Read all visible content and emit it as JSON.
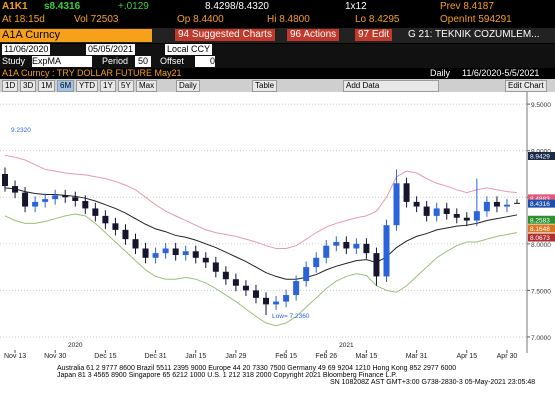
{
  "quote": {
    "ticker": "A1K1",
    "last": "s8.4316",
    "change": "+.0129",
    "bid_ask": "8.4298/8.4320",
    "size": "1x12",
    "prev": "Prev 8.4187",
    "time": "At 18:15d",
    "vol": "Vol 72503",
    "open": "Op 8.4400",
    "high": "Hi 8.4800",
    "low": "Lo 8.4295",
    "open_interest": "OpenInt 594291"
  },
  "menu": {
    "security": "A1A Curncy",
    "items": [
      "94 Suggested Charts",
      "96 Actions",
      "97 Edit",
      "G 21: TEKNIK COZUMLEM..."
    ]
  },
  "range": {
    "start": "11/06/2020",
    "end": "05/05/2021",
    "currency": "Local CCY"
  },
  "study": {
    "label": "Study",
    "name": "ExpMA",
    "period_label": "Period",
    "period": "50",
    "offset_label": "Offset",
    "offset": "0"
  },
  "chart_header": {
    "title": "A1A Curncy : TRY DOLLAR FUTURE May21",
    "frequency": "Daily",
    "dates": "11/6/2020-5/5/2021"
  },
  "tools": {
    "periods": [
      "1D",
      "3D",
      "1M",
      "6M",
      "YTD",
      "1Y",
      "5Y",
      "Max"
    ],
    "frequency": "Daily",
    "table": "Table",
    "add_data": "Add Data",
    "edit": "Edit Chart"
  },
  "footer": [
    "Australia 61 2 9777 8600 Brazil 5511 2395 9000 Europe 44 20 7330 7500 Germany 49 69 9204 1210 Hong Kong 852 2977 6000",
    "Japan 81 3 4565 8900        Singapore 65 6212 1000        U.S. 1 212 318 2000        Copyright 2021 Bloomberg Finance L.P.",
    "SN 108208Z AST  GMT+3:00 G738-2830-3 05-May-2021 23:05:48"
  ],
  "chart_data": {
    "type": "candlestick",
    "up_color": "#2b63d9",
    "down_color": "#15152e",
    "grid": true,
    "ylim": [
      6.86,
      9.63
    ],
    "yticks": [
      {
        "value": 7,
        "label": "7.0000"
      },
      {
        "value": 7.5,
        "label": "7.5000"
      },
      {
        "value": 8,
        "label": "8.0000"
      },
      {
        "value": 8.5,
        "label": "8.5000"
      },
      {
        "value": 9,
        "label": "9.0000"
      },
      {
        "value": 9.5,
        "label": "9.5000"
      }
    ],
    "xlim": [
      0,
      51
    ],
    "xticks": [
      {
        "value": 1,
        "label": "Nov 13"
      },
      {
        "value": 5,
        "label": "Nov 30"
      },
      {
        "value": 10,
        "label": "Dec 15"
      },
      {
        "value": 15,
        "label": "Dec 31"
      },
      {
        "value": 19,
        "label": "Jan 15"
      },
      {
        "value": 23,
        "label": "Jan 29"
      },
      {
        "value": 28,
        "label": "Feb 15"
      },
      {
        "value": 32,
        "label": "Feb 26"
      },
      {
        "value": 36,
        "label": "Mar 15"
      },
      {
        "value": 41,
        "label": "Mar 31"
      },
      {
        "value": 46,
        "label": "Apr 15"
      },
      {
        "value": 50,
        "label": "Apr 30"
      }
    ],
    "year_labels": [
      {
        "value": 7,
        "label": "2020"
      },
      {
        "value": 34,
        "label": "2021"
      }
    ],
    "candles": [
      [
        8.75,
        8.82,
        8.56,
        8.62
      ],
      [
        8.62,
        8.68,
        8.49,
        8.55
      ],
      [
        8.55,
        8.61,
        8.34,
        8.4
      ],
      [
        8.4,
        8.51,
        8.34,
        8.45
      ],
      [
        8.45,
        8.54,
        8.39,
        8.48
      ],
      [
        8.48,
        8.58,
        8.42,
        8.52
      ],
      [
        8.52,
        8.58,
        8.44,
        8.5
      ],
      [
        8.5,
        8.56,
        8.4,
        8.46
      ],
      [
        8.46,
        8.52,
        8.32,
        8.38
      ],
      [
        8.38,
        8.44,
        8.24,
        8.3
      ],
      [
        8.3,
        8.36,
        8.16,
        8.22
      ],
      [
        8.22,
        8.28,
        8.09,
        8.15
      ],
      [
        8.15,
        8.21,
        7.99,
        8.05
      ],
      [
        8.05,
        8.11,
        7.89,
        7.95
      ],
      [
        7.95,
        8.01,
        7.79,
        7.85
      ],
      [
        7.85,
        7.96,
        7.79,
        7.9
      ],
      [
        7.9,
        8.01,
        7.84,
        7.95
      ],
      [
        7.95,
        8.01,
        7.82,
        7.88
      ],
      [
        7.88,
        7.98,
        7.82,
        7.92
      ],
      [
        7.92,
        7.98,
        7.79,
        7.85
      ],
      [
        7.85,
        7.91,
        7.74,
        7.8
      ],
      [
        7.8,
        7.86,
        7.64,
        7.7
      ],
      [
        7.7,
        7.76,
        7.56,
        7.62
      ],
      [
        7.62,
        7.68,
        7.49,
        7.55
      ],
      [
        7.55,
        7.61,
        7.44,
        7.5
      ],
      [
        7.5,
        7.56,
        7.36,
        7.42
      ],
      [
        7.42,
        7.48,
        7.236,
        7.35
      ],
      [
        7.35,
        7.44,
        7.29,
        7.38
      ],
      [
        7.38,
        7.51,
        7.32,
        7.45
      ],
      [
        7.45,
        7.66,
        7.39,
        7.6
      ],
      [
        7.6,
        7.81,
        7.54,
        7.75
      ],
      [
        7.75,
        7.91,
        7.69,
        7.85
      ],
      [
        7.85,
        8.04,
        7.79,
        7.98
      ],
      [
        7.98,
        8.08,
        7.92,
        8.02
      ],
      [
        8.02,
        8.08,
        7.89,
        7.95
      ],
      [
        7.95,
        8.06,
        7.89,
        8.0
      ],
      [
        8.0,
        8.06,
        7.84,
        7.9
      ],
      [
        7.9,
        7.96,
        7.55,
        7.65
      ],
      [
        7.65,
        8.26,
        7.59,
        8.2
      ],
      [
        8.2,
        8.8,
        8.14,
        8.65
      ],
      [
        8.65,
        8.71,
        8.39,
        8.45
      ],
      [
        8.45,
        8.51,
        8.34,
        8.4
      ],
      [
        8.4,
        8.46,
        8.24,
        8.3
      ],
      [
        8.3,
        8.44,
        8.24,
        8.38
      ],
      [
        8.38,
        8.44,
        8.26,
        8.32
      ],
      [
        8.32,
        8.38,
        8.22,
        8.28
      ],
      [
        8.28,
        8.34,
        8.19,
        8.25
      ],
      [
        8.25,
        8.7,
        8.19,
        8.35
      ],
      [
        8.35,
        8.51,
        8.29,
        8.45
      ],
      [
        8.45,
        8.51,
        8.34,
        8.4
      ],
      [
        8.4,
        8.48,
        8.34,
        8.42
      ],
      [
        8.44,
        8.48,
        8.4295,
        8.4316
      ]
    ],
    "series": [
      {
        "color": "#222222",
        "values": [
          8.6,
          8.59,
          8.56,
          8.54,
          8.53,
          8.53,
          8.52,
          8.51,
          8.49,
          8.46,
          8.42,
          8.38,
          8.33,
          8.27,
          8.21,
          8.16,
          8.13,
          8.09,
          8.07,
          8.04,
          8.0,
          7.96,
          7.91,
          7.86,
          7.81,
          7.75,
          7.69,
          7.65,
          7.62,
          7.62,
          7.64,
          7.67,
          7.72,
          7.76,
          7.79,
          7.82,
          7.83,
          7.8,
          7.86,
          7.96,
          8.03,
          8.08,
          8.11,
          8.15,
          8.17,
          8.19,
          8.2,
          8.22,
          8.25,
          8.27,
          8.29,
          8.31
        ]
      },
      {
        "color": "#e89aa8",
        "values": [
          8.95,
          8.93,
          8.9,
          8.85,
          8.8,
          8.78,
          8.76,
          8.75,
          8.74,
          8.72,
          8.7,
          8.67,
          8.63,
          8.58,
          8.5,
          8.42,
          8.35,
          8.3,
          8.25,
          8.2,
          8.15,
          8.12,
          8.1,
          8.08,
          8.05,
          8.02,
          7.98,
          7.95,
          7.95,
          7.98,
          8.05,
          8.12,
          8.18,
          8.22,
          8.25,
          8.28,
          8.3,
          8.35,
          8.5,
          8.72,
          8.78,
          8.76,
          8.7,
          8.65,
          8.62,
          8.58,
          8.55,
          8.58,
          8.6,
          8.58,
          8.56,
          8.55
        ]
      },
      {
        "color": "#9cc07a",
        "values": [
          8.3,
          8.25,
          8.22,
          8.22,
          8.24,
          8.27,
          8.3,
          8.32,
          8.3,
          8.22,
          8.12,
          8.02,
          7.92,
          7.82,
          7.72,
          7.65,
          7.62,
          7.62,
          7.64,
          7.62,
          7.58,
          7.52,
          7.45,
          7.38,
          7.3,
          7.22,
          7.15,
          7.12,
          7.15,
          7.22,
          7.32,
          7.42,
          7.52,
          7.6,
          7.65,
          7.68,
          7.66,
          7.55,
          7.5,
          7.48,
          7.55,
          7.65,
          7.75,
          7.85,
          7.92,
          7.98,
          8.02,
          8.02,
          8.05,
          8.08,
          8.1,
          8.12
        ]
      }
    ],
    "annotations": [
      {
        "x": 26,
        "y": 7.236,
        "text": "Low= 7.2360"
      },
      {
        "x": 0,
        "y": 9.232,
        "text": "9.2320"
      }
    ],
    "value_tags": [
      {
        "value": 8.9429,
        "color": "#1b2a48"
      },
      {
        "value": 8.4883,
        "color": "#e05a7a"
      },
      {
        "value": 8.4316,
        "color": "#1f4ea8"
      },
      {
        "value": 8.2583,
        "color": "#2f8f2f"
      },
      {
        "value": 8.1648,
        "color": "#d9771f"
      },
      {
        "value": 8.0673,
        "color": "#b03030"
      }
    ]
  }
}
